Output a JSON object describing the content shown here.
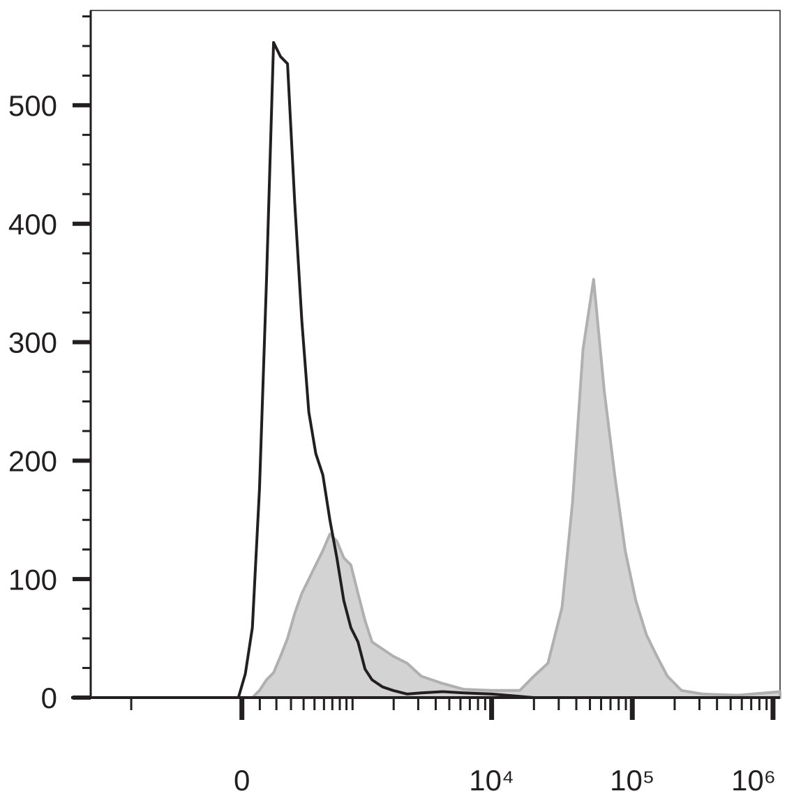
{
  "chart_data": {
    "type": "histogram",
    "xscale": "biexponential",
    "x": [
      -1980,
      -19,
      19,
      58,
      98,
      139,
      182,
      227,
      275,
      328,
      385,
      446,
      513,
      587,
      669,
      759,
      858,
      972,
      1098,
      1238,
      1393,
      1663,
      1982,
      2500,
      3155,
      4462,
      6313,
      10010,
      15860,
      19960,
      25130,
      31650,
      37600,
      44650,
      53090,
      63170,
      74930,
      89040,
      105800,
      126000,
      149500,
      177700,
      223800,
      316200,
      562800,
      1122000
    ],
    "series": [
      {
        "color": "#b0b0b0",
        "fill": "#d3d3d3",
        "values": [
          0,
          0,
          0,
          0,
          6,
          15,
          21,
          35,
          50,
          71,
          88,
          100,
          112,
          124,
          138,
          132,
          118,
          112,
          88,
          65,
          47,
          41,
          35,
          29,
          18,
          12,
          7,
          6,
          6,
          18,
          29,
          76,
          165,
          294,
          353,
          259,
          188,
          124,
          82,
          53,
          35,
          18,
          6,
          3,
          2,
          5
        ]
      },
      {
        "color": "#231f20",
        "values": [
          0,
          0,
          20,
          59,
          176,
          353,
          553,
          541,
          535,
          418,
          318,
          241,
          206,
          188,
          150,
          118,
          82,
          59,
          47,
          24,
          15,
          9,
          6,
          3,
          4,
          5,
          4,
          3,
          1,
          0,
          0,
          0,
          0,
          0,
          0,
          0,
          0,
          0,
          0,
          0,
          0,
          0,
          0,
          0,
          0,
          0
        ]
      }
    ],
    "xlim": [
      -1980,
      1122000
    ],
    "xticks": [
      0,
      {
        "value": 10000,
        "label": "10⁴"
      },
      {
        "value": 100000,
        "label": "10⁵"
      },
      {
        "value": 1000000,
        "label": "10⁶"
      }
    ],
    "minor_xticks": [
      -1000,
      100,
      200,
      300,
      400,
      500,
      600,
      700,
      800,
      900,
      1000,
      2000,
      3000,
      4000,
      5000,
      6000,
      7000,
      8000,
      9000,
      20000,
      30000,
      40000,
      50000,
      60000,
      70000,
      80000,
      90000,
      200000,
      300000,
      400000,
      500000,
      600000,
      700000,
      800000,
      900000
    ],
    "ylim": [
      0,
      580
    ],
    "yticks": [
      0,
      100,
      200,
      300,
      400,
      500
    ],
    "minor_yticks": [
      25,
      50,
      75,
      125,
      150,
      175,
      225,
      250,
      275,
      325,
      350,
      375,
      425,
      450,
      475,
      525,
      550,
      575
    ]
  }
}
